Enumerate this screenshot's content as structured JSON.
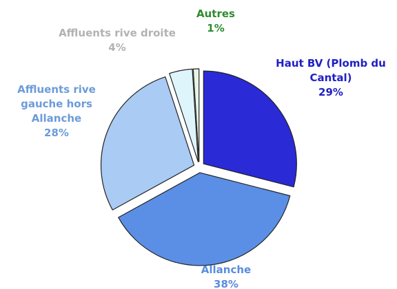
{
  "chart_data": {
    "type": "pie",
    "categories": [
      "Haut BV (Plomb du Cantal)",
      "Allanche",
      "Affluents rive gauche hors Allanche",
      "Affluents rive droite",
      "Autres"
    ],
    "values": [
      29,
      38,
      28,
      4,
      1
    ],
    "value_labels": [
      "29%",
      "38%",
      "28%",
      "4%",
      "1%"
    ],
    "colors": [
      "#2a2ad6",
      "#5b8fe6",
      "#a9cbf4",
      "#def5fb",
      "#e6f6e6"
    ],
    "label_colors": [
      "#2020c4",
      "#5a8cdd",
      "#6c9bd9",
      "#b2b2b2",
      "#2e8b2e"
    ]
  }
}
